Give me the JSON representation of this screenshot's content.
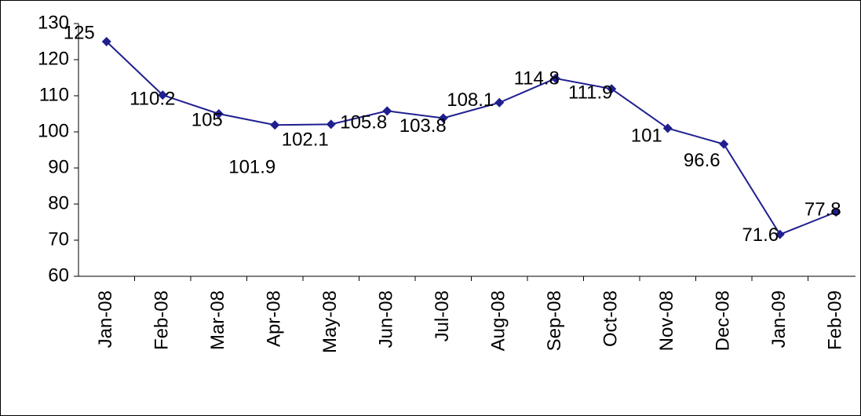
{
  "chart_data": {
    "type": "line",
    "categories": [
      "Jan-08",
      "Feb-08",
      "Mar-08",
      "Apr-08",
      "May-08",
      "Jun-08",
      "Jul-08",
      "Aug-08",
      "Sep-08",
      "Oct-08",
      "Nov-08",
      "Dec-08",
      "Jan-09",
      "Feb-09"
    ],
    "values": [
      125,
      110.2,
      105,
      101.9,
      102.1,
      105.8,
      103.8,
      108.1,
      114.8,
      111.9,
      101,
      96.6,
      71.6,
      77.8
    ],
    "color": "#1f1f8f",
    "ylim": [
      60,
      130
    ],
    "yticks": [
      60,
      70,
      80,
      90,
      100,
      110,
      120,
      130
    ],
    "grid": false
  }
}
